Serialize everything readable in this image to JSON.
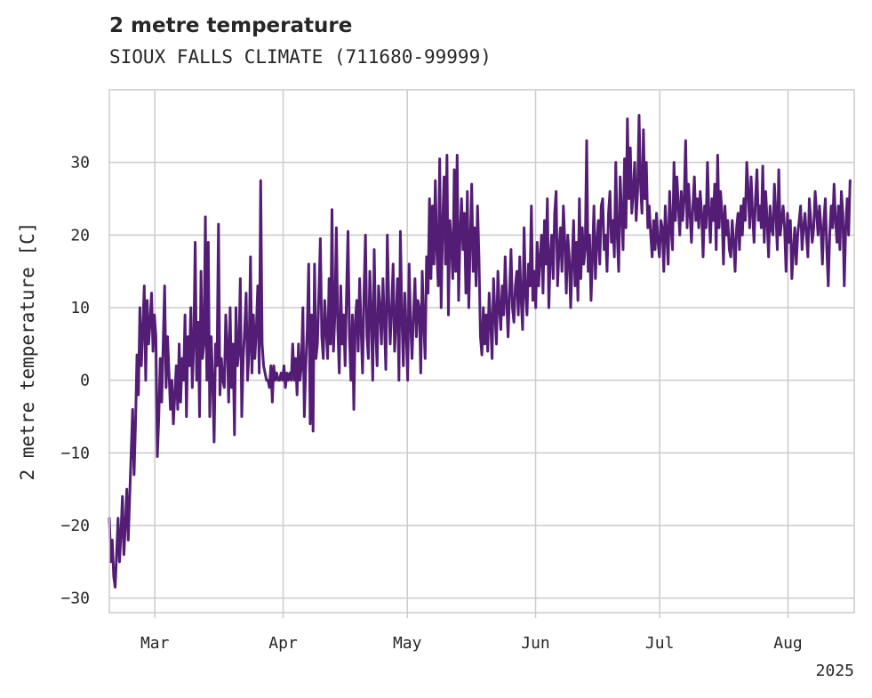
{
  "chart_data": {
    "type": "line",
    "title": "2 metre temperature",
    "subtitle": "SIOUX FALLS CLIMATE (711680-99999)",
    "xlabel": "",
    "ylabel": "2 metre temperature [C]",
    "x_ticks": [
      "Mar",
      "Apr",
      "May",
      "Jun",
      "Jul",
      "Aug"
    ],
    "x_tick_dates": [
      "2025-03-01",
      "2025-04-01",
      "2025-05-01",
      "2025-06-01",
      "2025-07-01",
      "2025-08-01"
    ],
    "x_year_label": "2025",
    "xlim": [
      "2025-02-18",
      "2025-08-17"
    ],
    "y_ticks": [
      -30,
      -20,
      -10,
      0,
      10,
      20,
      30
    ],
    "ylim": [
      -32,
      40
    ],
    "grid": true,
    "line_color": "#541d75",
    "series": [
      {
        "x_start": "2025-02-18",
        "x_end": "2025-08-16",
        "values": [
          -19,
          -25,
          -22,
          -27,
          -28.5,
          -24,
          -19,
          -25,
          -21,
          -16,
          -24,
          -20,
          -15,
          -22,
          -16,
          -10,
          -4,
          -13,
          -6,
          3.5,
          -2,
          10,
          2,
          7,
          13,
          0,
          11,
          5,
          8,
          12,
          4,
          9,
          6,
          -10.5,
          -5,
          3,
          -3,
          5,
          13,
          -1,
          6,
          1,
          -4,
          0,
          -6,
          -2,
          2,
          -4,
          5,
          -3,
          3,
          0,
          9,
          -5,
          6,
          2,
          10,
          -1,
          5,
          19,
          0,
          8,
          -5,
          15,
          3,
          5,
          22.5,
          0,
          19,
          -5,
          6,
          0,
          -8.5,
          5,
          2,
          21.5,
          -2,
          3,
          0,
          -1,
          9,
          5,
          -3,
          10,
          -1,
          5,
          -7.5,
          10,
          2,
          4,
          14,
          -5,
          3,
          7,
          12,
          0,
          4,
          17,
          1,
          9,
          3,
          7,
          13,
          1,
          27.5,
          5,
          2,
          1,
          0,
          0,
          -1,
          2,
          -3,
          2,
          0,
          1,
          0,
          0,
          1,
          0,
          2,
          -1,
          1,
          0,
          1,
          0,
          5,
          0,
          3,
          -2,
          5,
          0,
          2,
          10,
          -5,
          2,
          7,
          16,
          -6,
          9,
          -7,
          16,
          3,
          5,
          12,
          19.5,
          6,
          3,
          11,
          7,
          3,
          14,
          5,
          23.5,
          4,
          9,
          21,
          7,
          1,
          13,
          5,
          9,
          2,
          12,
          20.5,
          6,
          0,
          9,
          -4,
          8,
          11,
          4,
          14,
          7,
          1,
          12,
          20,
          6,
          3,
          15,
          9,
          0,
          18,
          7,
          2,
          13,
          10,
          5,
          14,
          8,
          1.5,
          20,
          11,
          5,
          10,
          16,
          4,
          8,
          14,
          0,
          20.5,
          9,
          2,
          12,
          7,
          0,
          16,
          8,
          3,
          9,
          14,
          6,
          11,
          10,
          1,
          15,
          8,
          3,
          17,
          12,
          25,
          14,
          24,
          16,
          27.5,
          18,
          13,
          30.5,
          10,
          21,
          28,
          16,
          31,
          9,
          22,
          19,
          14,
          29,
          15,
          31,
          11,
          20,
          25,
          18,
          23,
          12,
          26,
          10,
          19,
          27,
          15,
          21,
          13,
          24,
          17,
          6,
          3.5,
          10,
          5,
          9,
          4,
          12,
          8,
          3,
          14,
          9,
          5,
          15,
          10,
          7,
          13,
          9,
          17,
          11,
          6,
          12,
          18,
          10,
          8,
          13,
          15,
          9,
          17,
          11,
          7,
          21,
          12,
          9,
          16,
          13,
          24,
          11,
          15,
          10,
          19,
          13,
          17,
          20,
          12,
          22,
          16,
          25,
          10,
          17,
          20,
          14,
          23,
          26,
          13,
          18,
          21,
          15,
          24,
          19,
          12,
          20,
          17,
          10,
          16,
          22,
          13,
          19,
          11,
          25,
          14,
          21,
          16,
          18,
          33,
          15,
          20,
          11,
          17,
          24,
          14,
          19,
          22,
          16,
          24,
          25,
          18,
          20,
          15,
          23,
          26,
          19,
          22,
          17,
          30,
          20,
          15,
          28,
          23,
          18,
          30.5,
          21,
          36,
          25,
          32,
          23,
          26,
          30,
          22,
          26,
          36.5,
          27,
          23,
          34.5,
          25,
          30,
          21,
          24,
          20,
          17,
          22,
          18,
          23,
          19,
          17,
          22,
          21,
          15,
          24,
          20,
          16,
          26,
          21,
          18,
          30,
          22,
          28,
          24,
          20,
          26,
          22,
          25,
          33,
          21,
          27,
          23,
          19,
          24,
          28,
          22,
          25,
          21,
          26,
          23,
          17,
          24,
          21,
          30,
          23,
          19,
          25,
          22,
          27,
          18,
          31,
          21,
          26,
          23,
          16,
          24,
          20,
          22,
          18,
          17,
          22,
          19,
          15,
          21,
          23,
          18,
          24,
          20,
          25,
          22,
          30,
          26,
          21,
          28,
          23,
          19,
          25,
          29,
          22,
          24,
          21,
          29.5,
          19,
          26,
          22,
          17,
          24,
          21,
          20,
          27,
          23,
          18,
          29,
          20,
          22,
          24,
          21,
          15,
          23,
          19,
          22,
          14,
          18,
          21,
          16,
          20,
          22,
          24,
          18,
          21,
          23,
          20,
          17,
          25,
          22,
          19,
          21,
          26,
          23,
          20,
          24,
          21,
          16,
          22,
          25,
          18,
          13,
          20,
          24,
          21,
          27,
          22,
          19,
          24,
          18,
          26,
          23,
          13,
          21,
          25,
          20,
          27.5
        ]
      }
    ]
  }
}
